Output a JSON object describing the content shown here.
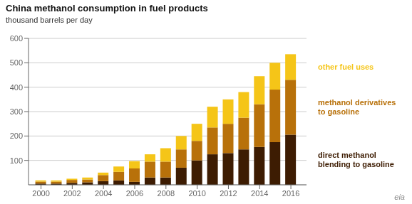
{
  "chart_data": {
    "type": "bar",
    "title": "China methanol consumption in fuel products",
    "subtitle": "thousand barrels per day",
    "x": [
      2000,
      2001,
      2002,
      2003,
      2004,
      2005,
      2006,
      2007,
      2008,
      2009,
      2010,
      2011,
      2012,
      2013,
      2014,
      2015,
      2016
    ],
    "series": [
      {
        "name": "direct methanol\nblending to gasoline",
        "color": "#3d1c02",
        "values": [
          5,
          5,
          8,
          10,
          15,
          18,
          12,
          30,
          30,
          70,
          100,
          125,
          130,
          145,
          155,
          175,
          205
        ]
      },
      {
        "name": "methanol derivatives\nto gasoline",
        "color": "#b8710a",
        "values": [
          8,
          8,
          12,
          12,
          25,
          35,
          55,
          65,
          65,
          75,
          80,
          110,
          120,
          130,
          175,
          215,
          225
        ]
      },
      {
        "name": "other fuel uses",
        "color": "#f5c518",
        "values": [
          5,
          5,
          5,
          8,
          10,
          22,
          30,
          30,
          55,
          55,
          70,
          85,
          100,
          105,
          115,
          110,
          105
        ]
      }
    ],
    "stacked": true,
    "xlim": [
      1999.2,
      2017.0
    ],
    "xticks": [
      2000,
      2002,
      2004,
      2006,
      2008,
      2010,
      2012,
      2014,
      2016
    ],
    "ylim": [
      0,
      600
    ],
    "yticks": [
      100,
      200,
      300,
      400,
      500,
      600
    ],
    "grid": true,
    "annotations": [
      "eia"
    ]
  }
}
